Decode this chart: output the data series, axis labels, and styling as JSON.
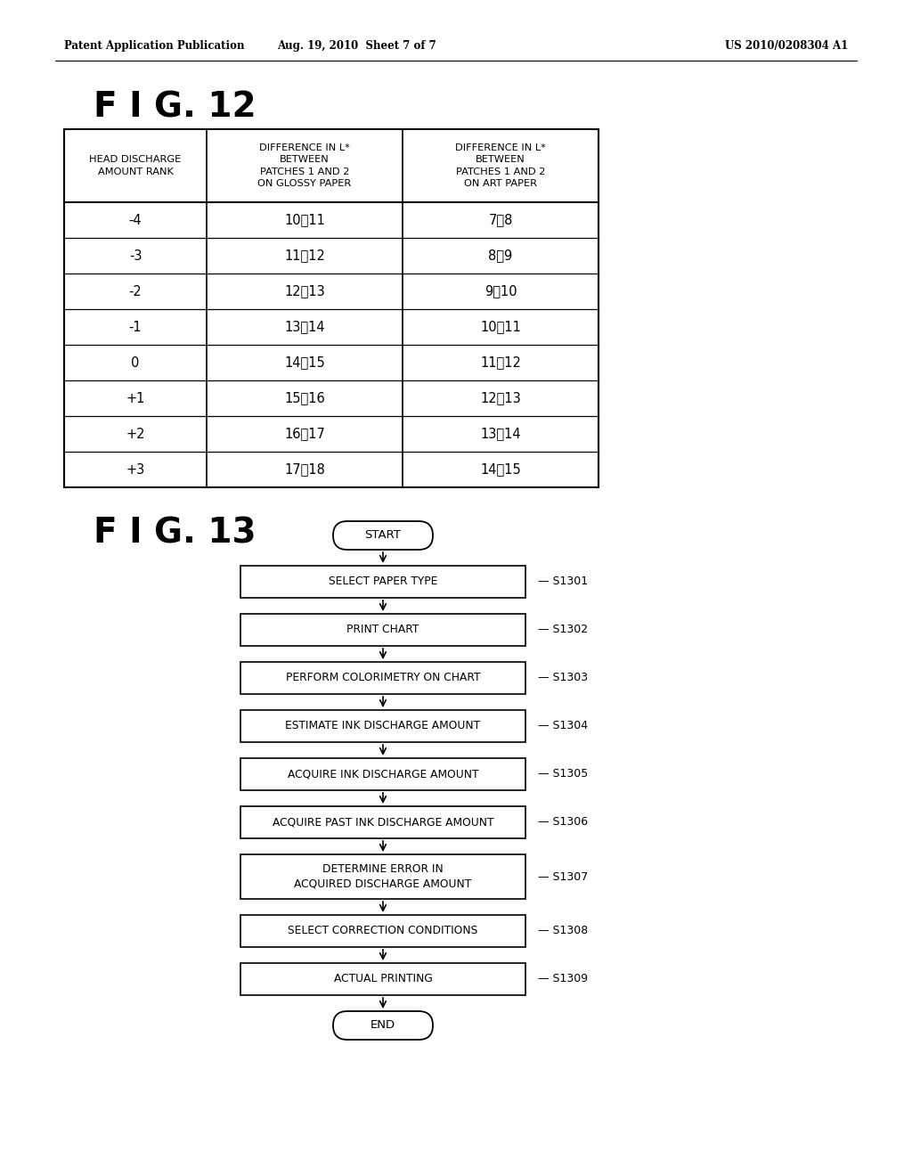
{
  "bg_color": "#ffffff",
  "header_left": "Patent Application Publication",
  "header_center": "Aug. 19, 2010  Sheet 7 of 7",
  "header_right": "US 2010/0208304 A1",
  "fig12_label": "F I G. 12",
  "fig13_label": "F I G. 13",
  "table_col_headers": [
    "HEAD DISCHARGE\nAMOUNT RANK",
    "DIFFERENCE IN L*\nBETWEEN\nPATCHES 1 AND 2\nON GLOSSY PAPER",
    "DIFFERENCE IN L*\nBETWEEN\nPATCHES 1 AND 2\nON ART PAPER"
  ],
  "table_rows": [
    [
      "-4",
      "10～11",
      "7～8"
    ],
    [
      "-3",
      "11～12",
      "8～9"
    ],
    [
      "-2",
      "12～13",
      "9～10"
    ],
    [
      "-1",
      "13～14",
      "10～11"
    ],
    [
      "0",
      "14～15",
      "11～12"
    ],
    [
      "+1",
      "15～16",
      "12～13"
    ],
    [
      "+2",
      "16～17",
      "13～14"
    ],
    [
      "+3",
      "17～18",
      "14～15"
    ]
  ],
  "fc_start": "START",
  "fc_end": "END",
  "fc_steps": [
    {
      "label": "SELECT PAPER TYPE",
      "sid": "S1301"
    },
    {
      "label": "PRINT CHART",
      "sid": "S1302"
    },
    {
      "label": "PERFORM COLORIMETRY ON CHART",
      "sid": "S1303"
    },
    {
      "label": "ESTIMATE INK DISCHARGE AMOUNT",
      "sid": "S1304"
    },
    {
      "label": "ACQUIRE INK DISCHARGE AMOUNT",
      "sid": "S1305"
    },
    {
      "label": "ACQUIRE PAST INK DISCHARGE AMOUNT",
      "sid": "S1306"
    },
    {
      "label": "DETERMINE ERROR IN\nACQUIRED DISCHARGE AMOUNT",
      "sid": "S1307"
    },
    {
      "label": "SELECT CORRECTION CONDITIONS",
      "sid": "S1308"
    },
    {
      "label": "ACTUAL PRINTING",
      "sid": "S1309"
    }
  ]
}
